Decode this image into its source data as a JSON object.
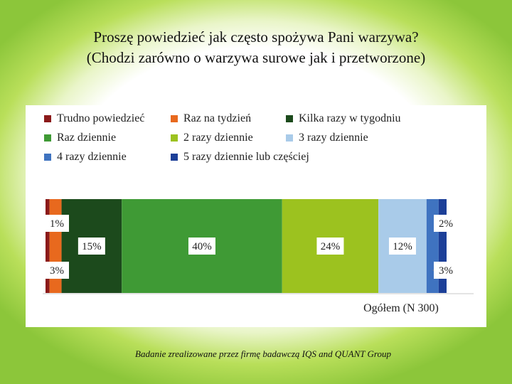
{
  "title_lines": [
    "Proszę powiedzieć jak często spożywa Pani warzywa?",
    "(Chodzi zarówno o warzywa surowe jak i przetworzone)"
  ],
  "footnote": "Badanie zrealizowane przez firmę badawczą IQS and QUANT Group",
  "chart_data": {
    "type": "bar",
    "orientation": "horizontal",
    "stacked": true,
    "categories": [
      "Ogółem (N=300)"
    ],
    "category_label_visible": "Ogółem (N 300)",
    "series": [
      {
        "name": "Trudno powiedzieć",
        "values": [
          1
        ],
        "label": "1%",
        "color": "#8b1a1a"
      },
      {
        "name": "Raz na tydzień",
        "values": [
          3
        ],
        "label": "3%",
        "color": "#e8691e"
      },
      {
        "name": "Kilka razy w tygodniu",
        "values": [
          15
        ],
        "label": "15%",
        "color": "#1c4a1c"
      },
      {
        "name": "Raz dziennie",
        "values": [
          40
        ],
        "label": "40%",
        "color": "#3f9a35"
      },
      {
        "name": "2 razy dziennie",
        "values": [
          24
        ],
        "label": "24%",
        "color": "#9cc21f"
      },
      {
        "name": "3 razy dziennie",
        "values": [
          12
        ],
        "label": "12%",
        "color": "#a9cbe9"
      },
      {
        "name": "4 razy dziennie",
        "values": [
          3
        ],
        "label": "3%",
        "color": "#3f73c0"
      },
      {
        "name": "5 razy dziennie lub częściej",
        "values": [
          2
        ],
        "label": "2%",
        "color": "#1c3f98"
      }
    ],
    "xlim": [
      0,
      100
    ],
    "grid": false,
    "legend": "top"
  }
}
